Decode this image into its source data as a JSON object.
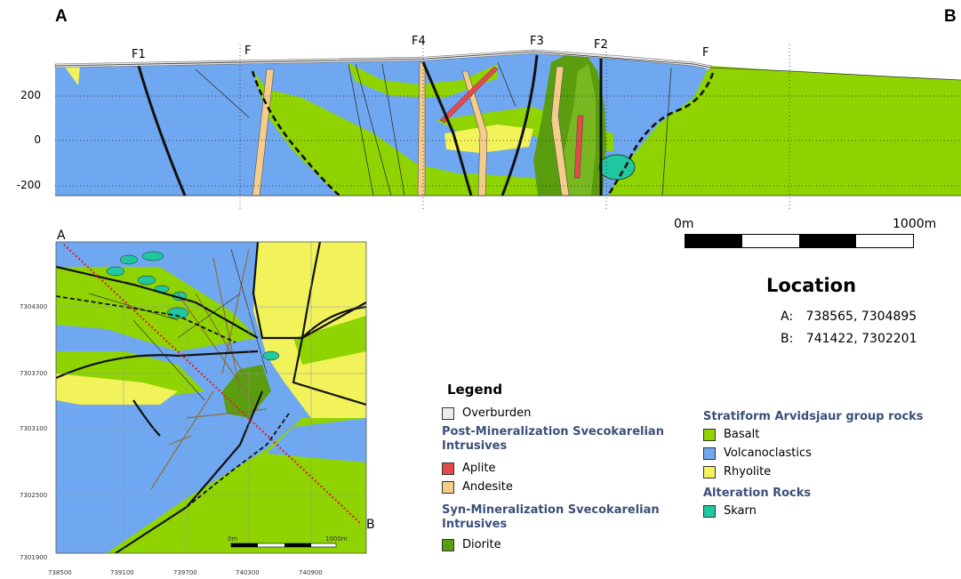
{
  "section": {
    "corner_left": "A",
    "corner_right": "B",
    "fault_labels": [
      "F1",
      "F",
      "F4",
      "F3",
      "F2",
      "F"
    ],
    "y_ticks": [
      "200",
      "0",
      "-200"
    ]
  },
  "scale_bar": {
    "start_label": "0m",
    "end_label": "1000m"
  },
  "location": {
    "title": "Location",
    "rows": [
      {
        "key": "A:",
        "value": "738565, 7304895"
      },
      {
        "key": "B:",
        "value": "741422, 7302201"
      }
    ]
  },
  "legend": {
    "title": "Legend",
    "overburden": "Overburden",
    "post_group": "Post-Mineralization Svecokarelian Intrusives",
    "aplite": "Aplite",
    "andesite": "Andesite",
    "syn_group": "Syn-Mineralization Svecokarelian Intrusives",
    "diorite": "Diorite",
    "strat_group": "Stratiform Arvidsjaur group rocks",
    "basalt": "Basalt",
    "volcanoclastics": "Volcanoclastics",
    "rhyolite": "Rhyolite",
    "alt_group": "Alteration Rocks",
    "skarn": "Skarn"
  },
  "colors": {
    "overburden": "#ececec",
    "aplite": "#e34a4a",
    "andesite": "#f5cc8a",
    "diorite": "#5a9e10",
    "basalt": "#8fd400",
    "volcanoclastics": "#6fa8f0",
    "rhyolite": "#f2f25a",
    "skarn": "#1fc8a0"
  },
  "map": {
    "label_a": "A",
    "label_b": "B",
    "y_ticks": [
      "7304300",
      "7303700",
      "7303100",
      "7302500",
      "7301900"
    ],
    "x_ticks": [
      "738500",
      "739100",
      "739700",
      "740300",
      "740900"
    ],
    "scale_start": "0m",
    "scale_end": "1000m"
  }
}
